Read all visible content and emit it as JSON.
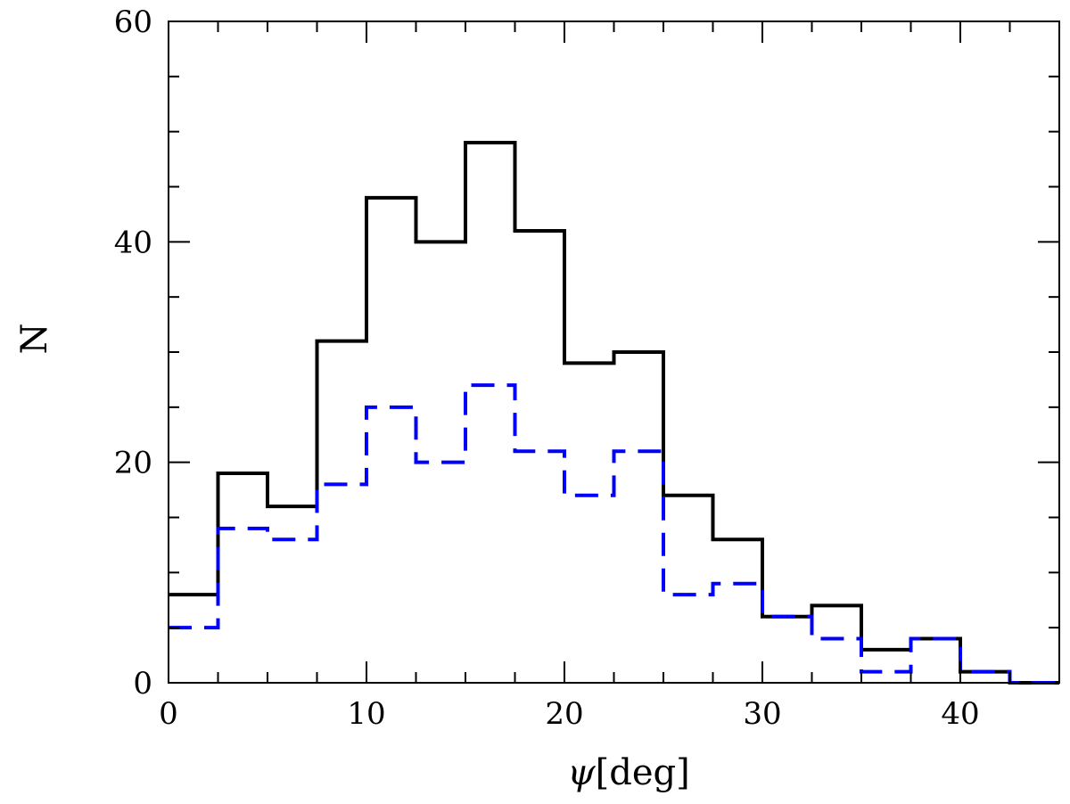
{
  "chart_data": {
    "type": "histogram",
    "title": "",
    "xlabel_symbol": "ψ",
    "xlabel_unit": "[deg]",
    "ylabel": "N",
    "xlim": [
      0,
      45
    ],
    "ylim": [
      0,
      60
    ],
    "bin_width": 2.5,
    "bin_edges": [
      0,
      2.5,
      5,
      7.5,
      10,
      12.5,
      15,
      17.5,
      20,
      22.5,
      25,
      27.5,
      30,
      32.5,
      35,
      37.5,
      40,
      42.5,
      45
    ],
    "x_ticks": [
      0,
      10,
      20,
      30,
      40
    ],
    "x_tick_labels": [
      "0",
      "10",
      "20",
      "30",
      "40"
    ],
    "y_ticks": [
      0,
      20,
      40,
      60
    ],
    "y_tick_labels": [
      "0",
      "20",
      "40",
      "60"
    ],
    "x_minor_step": 2.5,
    "y_minor_step": 5,
    "grid": false,
    "series": [
      {
        "style": "solid",
        "color": "#000000",
        "values": [
          8,
          19,
          16,
          31,
          44,
          40,
          49,
          41,
          29,
          30,
          17,
          13,
          6,
          7,
          3,
          4,
          1,
          0
        ]
      },
      {
        "style": "dashed",
        "color": "#0000ff",
        "values": [
          5,
          14,
          13,
          18,
          25,
          20,
          27,
          21,
          17,
          21,
          8,
          9,
          6,
          4,
          1,
          4,
          1,
          0
        ]
      }
    ]
  }
}
